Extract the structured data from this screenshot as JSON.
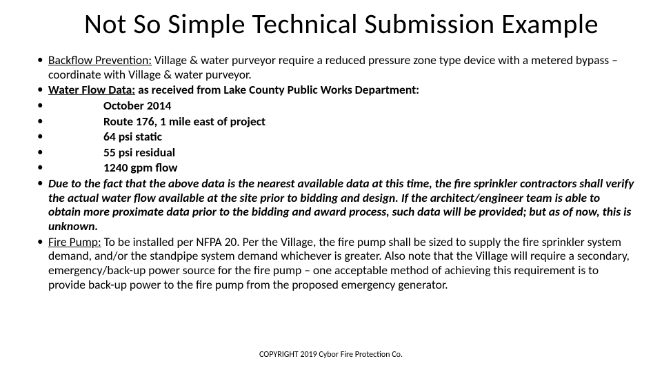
{
  "title": "Not So Simple Technical Submission Example",
  "bullets": {
    "b1": {
      "lead": "Backflow Prevention:",
      "rest": " Village & water purveyor require a reduced pressure zone type device with a metered bypass – coordinate with Village & water purveyor."
    },
    "b2": {
      "lead": "Water Flow Data:",
      "rest": " as received from Lake County Public Works Department:"
    },
    "b3": "October 2014",
    "b4": "Route 176, 1 mile east of project",
    "b5": "64 psi static",
    "b6": "55 psi residual",
    "b7": "1240 gpm flow",
    "b8": "Due to the fact that the above data is the nearest available data at this time, the fire sprinkler contractors shall verify the actual water flow available at the site prior to bidding and design.  If the architect/engineer team is able to obtain more proximate data prior to the bidding and award process, such data will be provided; but as of now, this is unknown.",
    "b9": {
      "lead": "Fire Pump:",
      "rest": " To be installed per NFPA 20.  Per the Village, the fire pump shall be sized to supply the fire sprinkler system demand, and/or the standpipe system demand whichever is greater.  Also note that the Village will require a secondary, emergency/back-up power source for the fire pump – one acceptable method of achieving this requirement is to provide back-up power to the fire pump from the proposed emergency generator."
    }
  },
  "footer": "COPYRIGHT 2019 Cybor Fire Protection Co."
}
